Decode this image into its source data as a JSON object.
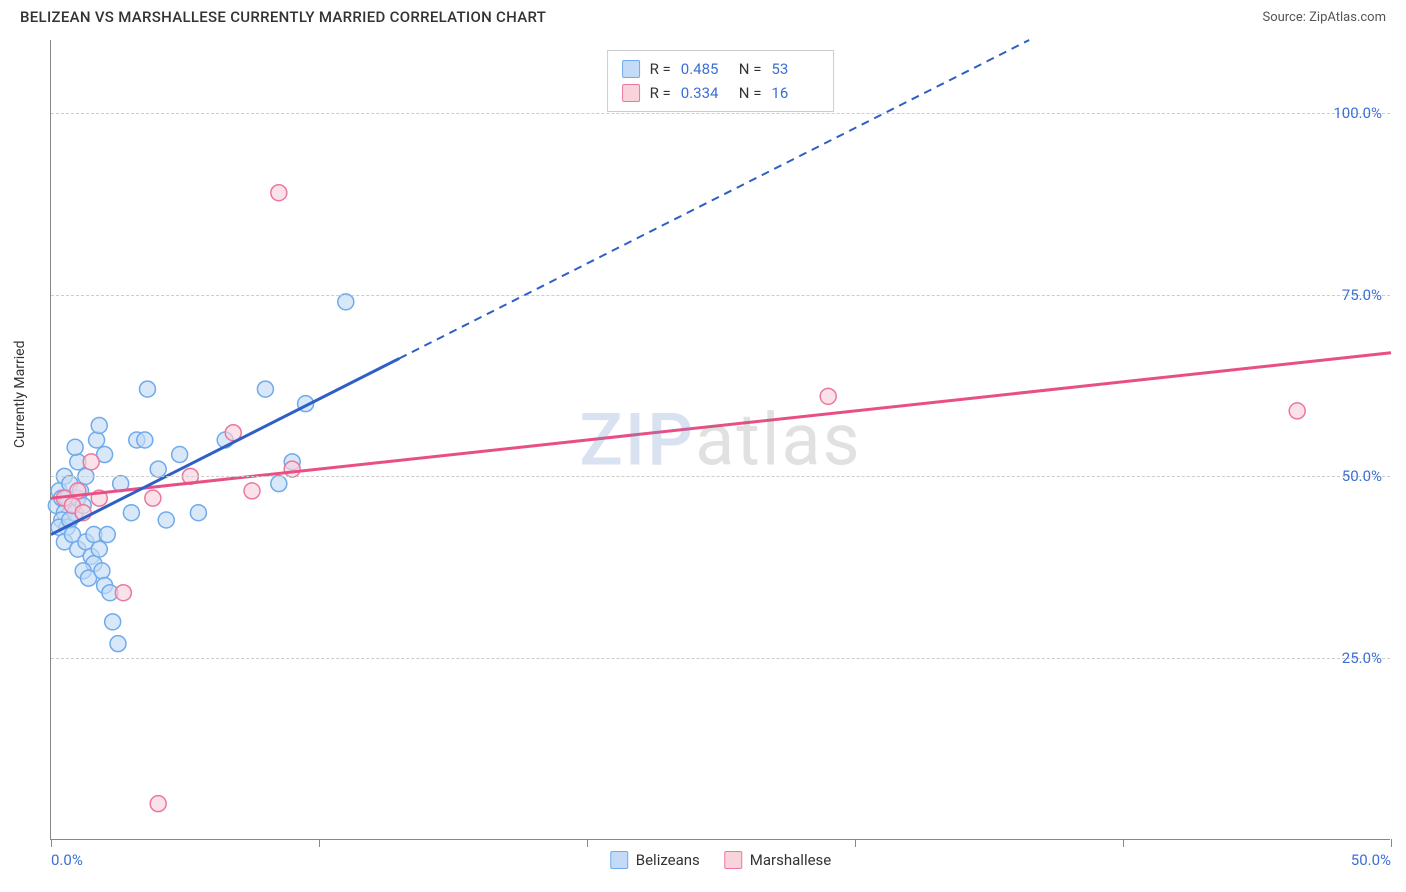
{
  "header": {
    "title": "BELIZEAN VS MARSHALLESE CURRENTLY MARRIED CORRELATION CHART",
    "source": "Source: ZipAtlas.com"
  },
  "chart": {
    "type": "scatter",
    "ylabel": "Currently Married",
    "xlim": [
      0,
      50
    ],
    "ylim": [
      0,
      110
    ],
    "xtick_positions": [
      0,
      10,
      20,
      30,
      40,
      50
    ],
    "xtick_labels": [
      "0.0%",
      "",
      "",
      "",
      "",
      "50.0%"
    ],
    "ytick_positions": [
      25,
      50,
      75,
      100
    ],
    "ytick_labels": [
      "25.0%",
      "50.0%",
      "75.0%",
      "100.0%"
    ],
    "grid_color": "#cccccc",
    "background_color": "#ffffff",
    "axis_color": "#888888",
    "tick_label_color": "#3b6fd6",
    "marker_radius": 8,
    "marker_stroke_width": 1.5,
    "series": {
      "belizeans": {
        "label": "Belizeans",
        "fill": "#c3dbf6",
        "stroke": "#6faaec",
        "fill_opacity": 0.65,
        "trend_line_color": "#2d5fc7",
        "trend_line_width": 3,
        "trend_dash": "8 6",
        "trend": {
          "x1": 0,
          "y1": 42,
          "x_solid_end": 13,
          "x2": 36.5,
          "y2": 110
        },
        "R": "0.485",
        "N": "53",
        "points": [
          [
            0.2,
            46
          ],
          [
            0.3,
            48
          ],
          [
            0.4,
            47
          ],
          [
            0.5,
            45
          ],
          [
            0.4,
            44
          ],
          [
            0.6,
            47
          ],
          [
            0.5,
            50
          ],
          [
            0.7,
            49
          ],
          [
            0.8,
            46
          ],
          [
            0.6,
            43
          ],
          [
            0.9,
            45
          ],
          [
            1.0,
            47
          ],
          [
            0.3,
            43
          ],
          [
            0.5,
            41
          ],
          [
            1.1,
            48
          ],
          [
            1.2,
            46
          ],
          [
            0.7,
            44
          ],
          [
            0.8,
            42
          ],
          [
            1.0,
            40
          ],
          [
            1.3,
            41
          ],
          [
            1.5,
            39
          ],
          [
            1.6,
            38
          ],
          [
            1.8,
            40
          ],
          [
            1.2,
            37
          ],
          [
            1.4,
            36
          ],
          [
            1.9,
            37
          ],
          [
            2.0,
            35
          ],
          [
            2.2,
            34
          ],
          [
            2.3,
            30
          ],
          [
            2.5,
            27
          ],
          [
            1.7,
            55
          ],
          [
            1.8,
            57
          ],
          [
            2.0,
            53
          ],
          [
            2.6,
            49
          ],
          [
            3.0,
            45
          ],
          [
            3.2,
            55
          ],
          [
            3.5,
            55
          ],
          [
            3.6,
            62
          ],
          [
            4.0,
            51
          ],
          [
            4.3,
            44
          ],
          [
            5.5,
            45
          ],
          [
            4.8,
            53
          ],
          [
            6.5,
            55
          ],
          [
            8.0,
            62
          ],
          [
            9.0,
            52
          ],
          [
            9.5,
            60
          ],
          [
            11.0,
            74
          ],
          [
            8.5,
            49
          ],
          [
            1.0,
            52
          ],
          [
            0.9,
            54
          ],
          [
            1.3,
            50
          ],
          [
            1.6,
            42
          ],
          [
            2.1,
            42
          ]
        ]
      },
      "marshallese": {
        "label": "Marshallese",
        "fill": "#f9d3dc",
        "stroke": "#ec779e",
        "fill_opacity": 0.65,
        "trend_line_color": "#e84f86",
        "trend_line_width": 3,
        "trend": {
          "x1": 0,
          "y1": 47,
          "x2": 50,
          "y2": 67
        },
        "R": "0.334",
        "N": "16",
        "points": [
          [
            0.5,
            47
          ],
          [
            0.8,
            46
          ],
          [
            1.0,
            48
          ],
          [
            1.2,
            45
          ],
          [
            1.5,
            52
          ],
          [
            1.8,
            47
          ],
          [
            2.7,
            34
          ],
          [
            3.8,
            47
          ],
          [
            4.0,
            5
          ],
          [
            5.2,
            50
          ],
          [
            6.8,
            56
          ],
          [
            7.5,
            48
          ],
          [
            8.5,
            89
          ],
          [
            9.0,
            51
          ],
          [
            29.0,
            61
          ],
          [
            46.5,
            59
          ]
        ]
      }
    },
    "watermark": {
      "part1": "ZIP",
      "part2": "atlas"
    },
    "legend_stats_labels": {
      "R": "R =",
      "N": "N ="
    },
    "title_fontsize": 15,
    "label_fontsize": 14,
    "tick_fontsize": 15
  }
}
